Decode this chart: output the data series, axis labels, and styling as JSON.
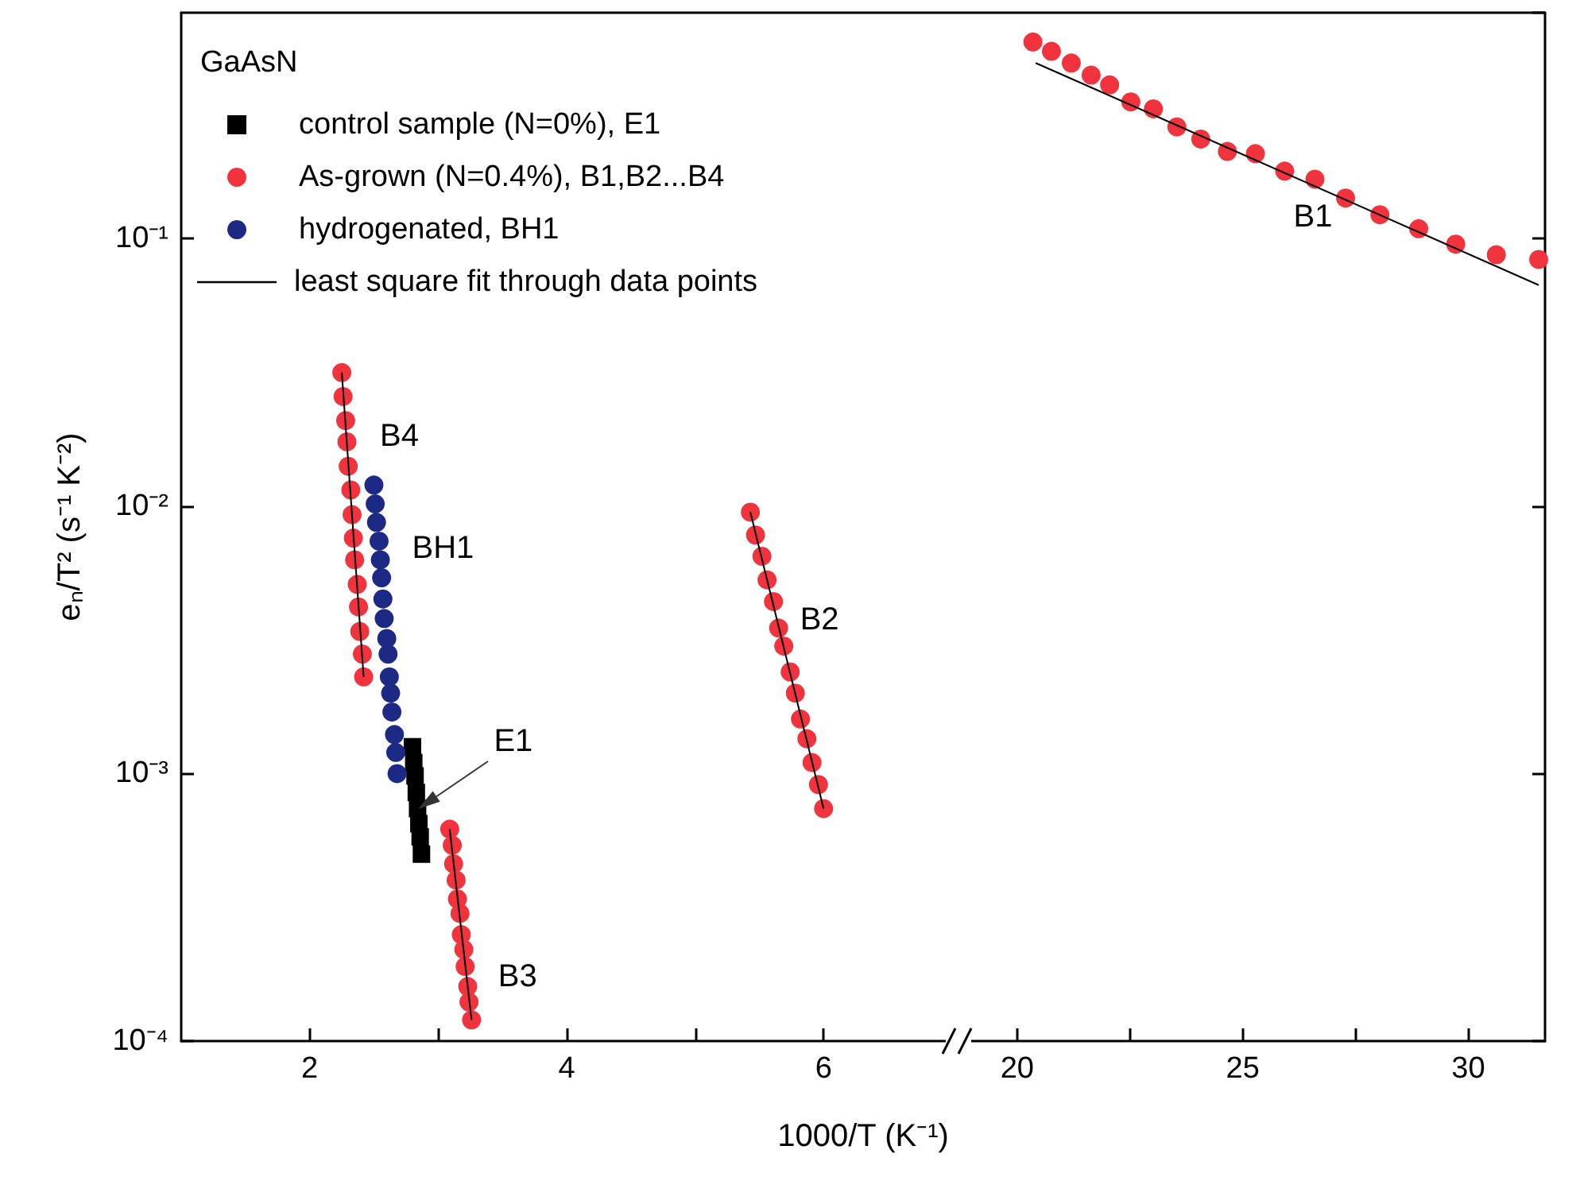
{
  "chart_data": [
    {
      "type": "scatter",
      "xlabel": "1000/T (K⁻¹)",
      "ylabel": "eₙ/T² (s⁻¹ K⁻²)",
      "legend_title": "GaAsN",
      "legend": "top left",
      "grid": false,
      "log": "y",
      "xlim": [
        1,
        7.05
      ],
      "xticks": [
        2,
        {
          "value": 3,
          "label": null
        },
        4,
        {
          "value": 5,
          "label": null
        },
        6
      ],
      "ylim": [
        0.0001,
        0.7
      ],
      "yticks": [
        {
          "value": 0.0001,
          "label": "10⁻⁴"
        },
        {
          "value": 0.001,
          "label": "10⁻³"
        },
        {
          "value": 0.01,
          "label": "10⁻²"
        },
        {
          "value": 0.1,
          "label": "10⁻¹"
        }
      ],
      "series": [
        {
          "name": "control sample (N=0%), E1",
          "color": "#000000",
          "marker": "square",
          "x": [
            2.8,
            2.81,
            2.82,
            2.83,
            2.84,
            2.85,
            2.86,
            2.87
          ],
          "values": [
            0.00126,
            0.0011,
            0.00098,
            0.00085,
            0.00074,
            0.00065,
            0.00058,
            0.0005
          ]
        },
        {
          "name": "As-grown (N=0.4%), B1,B2...B4",
          "color": "#f0333d",
          "marker": "circle",
          "x": [
            2.25,
            2.26,
            2.28,
            2.29,
            2.3,
            2.32,
            2.33,
            2.34,
            2.35,
            2.37,
            2.38,
            2.39,
            2.41,
            2.42,
            3.09,
            3.11,
            3.12,
            3.14,
            3.15,
            3.17,
            3.18,
            3.2,
            3.21,
            3.23,
            3.24,
            3.26,
            5.43,
            5.47,
            5.52,
            5.56,
            5.61,
            5.65,
            5.69,
            5.74,
            5.78,
            5.82,
            5.87,
            5.91,
            5.96,
            6.0
          ],
          "values": [
            0.0316,
            0.0257,
            0.0209,
            0.0174,
            0.0141,
            0.0115,
            0.0093,
            0.0076,
            0.0063,
            0.0051,
            0.0042,
            0.0034,
            0.0028,
            0.0023,
            0.00062,
            0.00054,
            0.00046,
            0.0004,
            0.00034,
            0.0003,
            0.00025,
            0.00022,
            0.00019,
            0.00016,
            0.00014,
            0.00012,
            0.0095,
            0.0078,
            0.0065,
            0.0053,
            0.0044,
            0.0035,
            0.003,
            0.0024,
            0.002,
            0.0016,
            0.00135,
            0.0011,
            0.00091,
            0.00074
          ]
        },
        {
          "name": "hydrogenated, BH1",
          "color": "#1c2a85",
          "marker": "circle",
          "x": [
            2.5,
            2.51,
            2.52,
            2.54,
            2.55,
            2.56,
            2.57,
            2.58,
            2.6,
            2.61,
            2.62,
            2.63,
            2.64,
            2.66,
            2.67,
            2.68
          ],
          "values": [
            0.012,
            0.0102,
            0.0087,
            0.0074,
            0.0063,
            0.0054,
            0.0045,
            0.0038,
            0.0032,
            0.0028,
            0.0023,
            0.002,
            0.0017,
            0.0014,
            0.0012,
            0.001
          ]
        },
        {
          "name": "least square fit through data points",
          "type": "line",
          "color": "#000000",
          "x": [
            2.25,
            2.42
          ],
          "values": [
            0.0316,
            0.0023
          ]
        },
        {
          "type": "line",
          "color": "#000000",
          "x": [
            3.09,
            3.26
          ],
          "values": [
            0.00062,
            0.00012
          ]
        },
        {
          "type": "line",
          "color": "#000000",
          "x": [
            5.43,
            6.0
          ],
          "values": [
            0.0095,
            0.00074
          ]
        }
      ],
      "annotations": [
        {
          "text": "B4",
          "x": 2.25,
          "y": 0.0316
        },
        {
          "text": "BH1",
          "x": 2.5,
          "y": 0.012
        },
        {
          "text": "E1",
          "x": 2.84,
          "y": 0.00074
        },
        {
          "text": "B2",
          "x": 5.52,
          "y": 0.0065
        },
        {
          "text": "B3",
          "x": 3.17,
          "y": 0.0003
        }
      ]
    },
    {
      "type": "scatter",
      "grid": false,
      "log": "y",
      "tick_labels": "x",
      "xlim": [
        18.7,
        31.7
      ],
      "xticks": [
        20,
        {
          "value": 22.5,
          "label": null
        },
        25,
        {
          "value": 27.5,
          "label": null
        },
        30
      ],
      "ylim": [
        0.0001,
        0.7
      ],
      "series": [
        {
          "color": "#f0333d",
          "marker": "circle",
          "x": [
            20.35,
            20.76,
            21.2,
            21.64,
            22.05,
            22.52,
            23.02,
            23.54,
            24.07,
            24.66,
            25.28,
            25.93,
            26.6,
            27.28,
            28.04,
            28.9,
            29.72,
            30.62,
            31.56
          ],
          "values": [
            0.544,
            0.502,
            0.454,
            0.409,
            0.376,
            0.325,
            0.306,
            0.262,
            0.236,
            0.212,
            0.208,
            0.179,
            0.167,
            0.142,
            0.123,
            0.109,
            0.0955,
            0.0871,
            0.0837
          ]
        },
        {
          "type": "line",
          "color": "#000000",
          "x": [
            20.41,
            31.56
          ],
          "values": [
            0.454,
            0.0671
          ]
        }
      ],
      "annotations": [
        {
          "text": "B1",
          "x": 25.28,
          "y": 0.208
        }
      ]
    }
  ]
}
